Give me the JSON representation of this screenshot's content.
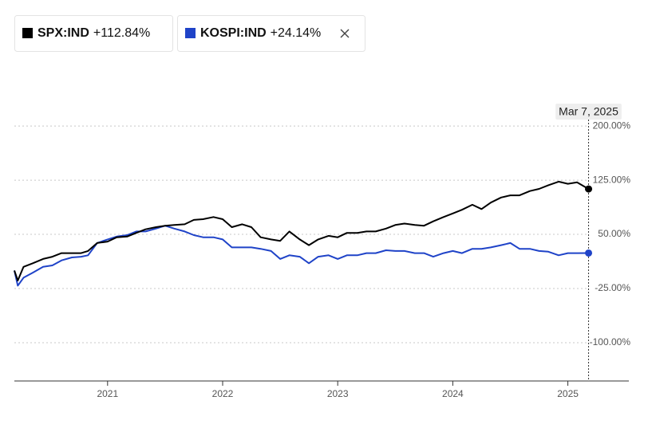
{
  "chart_data": {
    "type": "line",
    "annotation": {
      "x": 2025.18,
      "label": "Mar 7, 2025"
    },
    "x": [
      2020.19,
      2020.22,
      2020.27,
      2020.35,
      2020.44,
      2020.52,
      2020.6,
      2020.69,
      2020.77,
      2020.83,
      2020.91,
      2021.0,
      2021.08,
      2021.17,
      2021.25,
      2021.33,
      2021.42,
      2021.5,
      2021.58,
      2021.67,
      2021.75,
      2021.83,
      2021.92,
      2022.0,
      2022.08,
      2022.17,
      2022.25,
      2022.33,
      2022.42,
      2022.5,
      2022.58,
      2022.67,
      2022.75,
      2022.83,
      2022.92,
      2023.0,
      2023.08,
      2023.17,
      2023.25,
      2023.33,
      2023.42,
      2023.5,
      2023.58,
      2023.67,
      2023.75,
      2023.83,
      2023.92,
      2024.0,
      2024.08,
      2024.17,
      2024.25,
      2024.33,
      2024.42,
      2024.5,
      2024.58,
      2024.67,
      2024.75,
      2024.83,
      2024.92,
      2025.0,
      2025.08,
      2025.18
    ],
    "series": [
      {
        "name": "SPX:IND",
        "change": "+112.84%",
        "color": "#000000",
        "values": [
          0,
          -14,
          5,
          10,
          16,
          19,
          24,
          24,
          24,
          27,
          38,
          40,
          46,
          47,
          52,
          57,
          60,
          62,
          63,
          64,
          70,
          71,
          74,
          71,
          60,
          64,
          60,
          46,
          43,
          41,
          54,
          43,
          35,
          43,
          48,
          46,
          52,
          52,
          54,
          54,
          58,
          63,
          65,
          63,
          62,
          68,
          74,
          79,
          84,
          91,
          85,
          94,
          101,
          104,
          104,
          110,
          113,
          118,
          123,
          120,
          122,
          112.84
        ]
      },
      {
        "name": "KOSPI:IND",
        "change": "+24.14%",
        "color": "#1f43c8",
        "values": [
          0,
          -21,
          -10,
          -3,
          5,
          7,
          14,
          18,
          19,
          21,
          38,
          43,
          47,
          49,
          54,
          54,
          58,
          62,
          58,
          54,
          49,
          46,
          46,
          43,
          32,
          32,
          32,
          30,
          27,
          16,
          21,
          19,
          10,
          19,
          21,
          16,
          21,
          21,
          24,
          24,
          28,
          27,
          27,
          24,
          24,
          19,
          24,
          27,
          24,
          30,
          30,
          32,
          35,
          38,
          30,
          30,
          27,
          26,
          21,
          24,
          24,
          24.14
        ]
      }
    ],
    "xlim": [
      2020.19,
      2025.53
    ],
    "xticks": [
      2021,
      2022,
      2023,
      2024,
      2025
    ],
    "ylim": [
      -153,
      220
    ],
    "yticks": [
      {
        "value": 200,
        "label": "200.00%"
      },
      {
        "value": 125,
        "label": "125.00%"
      },
      {
        "value": 50,
        "label": "50.00%"
      },
      {
        "value": -25,
        "label": "-25.00%"
      },
      {
        "value": -100,
        "label": "-100.00%"
      }
    ],
    "grid": true
  }
}
